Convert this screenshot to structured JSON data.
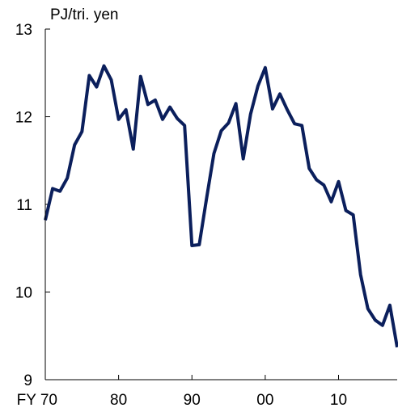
{
  "chart_data": {
    "type": "line",
    "ylabel": "PJ/tri. yen",
    "xlabel": "",
    "ylim": [
      9,
      13
    ],
    "xlim": [
      1970,
      2018
    ],
    "yticks": [
      9,
      10,
      11,
      12,
      13
    ],
    "xticks": [
      {
        "value": 1970,
        "label": "FY 70"
      },
      {
        "value": 1980,
        "label": "80"
      },
      {
        "value": 1990,
        "label": "90"
      },
      {
        "value": 2000,
        "label": "00"
      },
      {
        "value": 2010,
        "label": "10"
      }
    ],
    "grid": false,
    "legend": "none",
    "line_color": "#0b1f5c",
    "series": [
      {
        "x": [
          1970,
          1971,
          1972,
          1973,
          1974,
          1975,
          1976,
          1977,
          1978,
          1979,
          1980,
          1981,
          1982,
          1983,
          1984,
          1985,
          1986,
          1987,
          1988,
          1989,
          1990,
          1991,
          1992,
          1993,
          1994,
          1995,
          1996,
          1997,
          1998,
          1999,
          2000,
          2001,
          2002,
          2003,
          2004,
          2005,
          2006,
          2007,
          2008,
          2009,
          2010,
          2011,
          2012,
          2013,
          2014,
          2015,
          2016,
          2017,
          2018
        ],
        "values": [
          10.82,
          11.18,
          11.15,
          11.3,
          11.68,
          11.83,
          12.47,
          12.34,
          12.58,
          12.42,
          11.97,
          12.08,
          11.63,
          12.46,
          12.14,
          12.19,
          11.97,
          12.11,
          11.98,
          11.9,
          10.53,
          10.54,
          11.07,
          11.58,
          11.84,
          11.93,
          12.15,
          11.52,
          12.03,
          12.35,
          12.56,
          12.09,
          12.26,
          12.08,
          11.92,
          11.9,
          11.41,
          11.28,
          11.22,
          11.03,
          11.26,
          10.93,
          10.88,
          10.2,
          9.81,
          9.68,
          9.62,
          9.85,
          9.37
        ]
      }
    ]
  }
}
